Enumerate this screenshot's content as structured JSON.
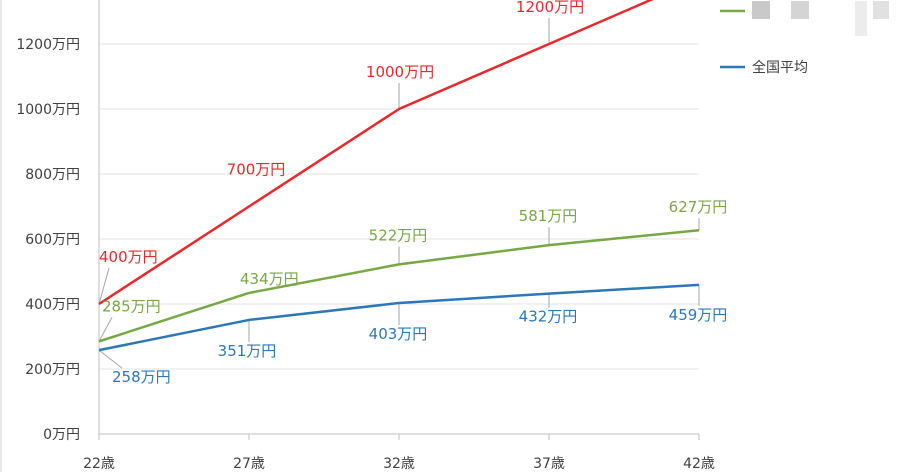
{
  "chart_data": {
    "type": "line",
    "x": [
      "22歳",
      "27歳",
      "32歳",
      "37歳",
      "42歳"
    ],
    "ylim": [
      0,
      1400
    ],
    "yticks": [
      "0万円",
      "200万円",
      "400万円",
      "600万円",
      "800万円",
      "1000万円",
      "1200万円"
    ],
    "ytick_values": [
      0,
      200,
      400,
      600,
      800,
      1000,
      1200
    ],
    "grid": true,
    "legend_position": "right",
    "series": [
      {
        "name": "",
        "color": "#e8282b",
        "values": [
          400,
          700,
          1000,
          1200,
          1400
        ],
        "labels": [
          "400万円",
          "700万円",
          "1000万円",
          "1200万円",
          ""
        ]
      },
      {
        "name": "",
        "color": "#78a845",
        "values": [
          285,
          434,
          522,
          581,
          627
        ],
        "labels": [
          "285万円",
          "434万円",
          "522万円",
          "581万円",
          "627万円"
        ]
      },
      {
        "name": "全国平均",
        "color": "#2c77b8",
        "values": [
          258,
          351,
          403,
          432,
          459
        ],
        "labels": [
          "258万円",
          "351万円",
          "403万円",
          "432万円",
          "459万円"
        ]
      }
    ]
  }
}
